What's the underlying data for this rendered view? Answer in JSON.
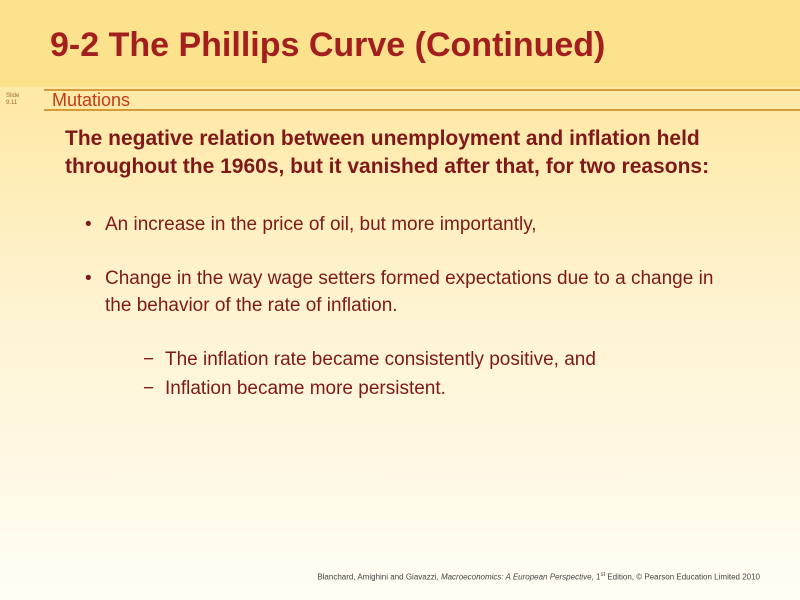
{
  "slide": {
    "title": "9-2  The Phillips Curve (Continued)",
    "slide_label": "Slide\n9.11",
    "subtitle": "Mutations",
    "lead": "The negative relation between unemployment and inflation held throughout the 1960s, but it vanished after that, for two reasons:",
    "bullets": {
      "b1": "An increase in the price of oil, but more importantly,",
      "b2": "Change in the way wage setters formed expectations due to a change in the behavior of the rate of inflation.",
      "sub1": "The inflation rate became consistently positive, and",
      "sub2": "Inflation became more persistent."
    },
    "footer": {
      "authors": "Blanchard, Amighini and Giavazzi, ",
      "book": "Macroeconomics: A European Perspective",
      "edition_prefix": ", 1",
      "edition_sup": "st",
      "rest": "  Edition, © Pearson Education Limited 2010"
    }
  },
  "style": {
    "colors": {
      "title_text": "#a31f1f",
      "body_text": "#7f1818",
      "subtitle_text": "#c43a1a",
      "subtitle_border": "#d89b3a",
      "title_bg": "#fce28c",
      "bg_top": "#ffe9a8",
      "bg_bottom": "#fffdf5"
    },
    "fontsize": {
      "title": 34,
      "subtitle": 18,
      "lead": 21,
      "bullet": 19,
      "footer": 8
    }
  }
}
